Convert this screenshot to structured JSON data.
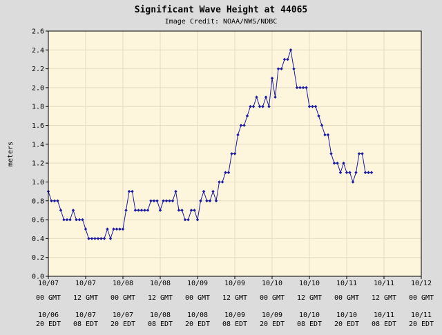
{
  "chart_data": {
    "type": "line",
    "title": "Significant Wave Height at 44065",
    "subtitle": "Image Credit: NOAA/NWS/NDBC",
    "ylabel": "meters",
    "xlabel": "",
    "ylim": [
      0.0,
      2.6
    ],
    "y_ticks": [
      "0.0",
      "0.2",
      "0.4",
      "0.6",
      "0.8",
      "1.0",
      "1.2",
      "1.4",
      "1.6",
      "1.8",
      "2.0",
      "2.2",
      "2.4",
      "2.6"
    ],
    "x_range_hours": [
      0,
      120
    ],
    "x_ticks_gmt": [
      {
        "date": "10/07",
        "time": "00 GMT"
      },
      {
        "date": "10/07",
        "time": "12 GMT"
      },
      {
        "date": "10/08",
        "time": "00 GMT"
      },
      {
        "date": "10/08",
        "time": "12 GMT"
      },
      {
        "date": "10/09",
        "time": "00 GMT"
      },
      {
        "date": "10/09",
        "time": "12 GMT"
      },
      {
        "date": "10/10",
        "time": "00 GMT"
      },
      {
        "date": "10/10",
        "time": "12 GMT"
      },
      {
        "date": "10/11",
        "time": "00 GMT"
      },
      {
        "date": "10/11",
        "time": "12 GMT"
      },
      {
        "date": "10/12",
        "time": "00 GMT"
      }
    ],
    "x_ticks_edt": [
      {
        "date": "10/06",
        "time": "20 EDT"
      },
      {
        "date": "10/07",
        "time": "08 EDT"
      },
      {
        "date": "10/07",
        "time": "20 EDT"
      },
      {
        "date": "10/08",
        "time": "08 EDT"
      },
      {
        "date": "10/08",
        "time": "20 EDT"
      },
      {
        "date": "10/09",
        "time": "08 EDT"
      },
      {
        "date": "10/09",
        "time": "20 EDT"
      },
      {
        "date": "10/10",
        "time": "08 EDT"
      },
      {
        "date": "10/10",
        "time": "20 EDT"
      },
      {
        "date": "10/11",
        "time": "08 EDT"
      },
      {
        "date": "10/11",
        "time": "20 EDT"
      }
    ],
    "grid": true,
    "colors": {
      "background": "#dcdcdc",
      "plot_area": "#fdf5dc",
      "grid": "#e6dcc2",
      "series": "#1a1aa0"
    },
    "series": [
      {
        "x": [
          0,
          1,
          2,
          3,
          4,
          5,
          6,
          7,
          8,
          9,
          10,
          11,
          12,
          13,
          14,
          15,
          16,
          17,
          18,
          19,
          20,
          21,
          22,
          23,
          24,
          25,
          26,
          27,
          28,
          29,
          30,
          31,
          32,
          33,
          34,
          35,
          36,
          37,
          38,
          39,
          40,
          41,
          42,
          43,
          44,
          45,
          46,
          47,
          48,
          49,
          50,
          51,
          52,
          53,
          54,
          55,
          56,
          57,
          58,
          59,
          60,
          61,
          62,
          63,
          64,
          65,
          66,
          67,
          68,
          69,
          70,
          71,
          72,
          73,
          74,
          75,
          76,
          77,
          78,
          79,
          80,
          81,
          82,
          83,
          84,
          85,
          86,
          87,
          88,
          89,
          90,
          91,
          92,
          93,
          94,
          95,
          96,
          97,
          98,
          99,
          100,
          101,
          102,
          103,
          104
        ],
        "values": [
          0.9,
          0.8,
          0.8,
          0.8,
          0.7,
          0.6,
          0.6,
          0.6,
          0.7,
          0.6,
          0.6,
          0.6,
          0.5,
          0.4,
          0.4,
          0.4,
          0.4,
          0.4,
          0.4,
          0.5,
          0.4,
          0.5,
          0.5,
          0.5,
          0.5,
          0.7,
          0.9,
          0.9,
          0.7,
          0.7,
          0.7,
          0.7,
          0.7,
          0.8,
          0.8,
          0.8,
          0.7,
          0.8,
          0.8,
          0.8,
          0.8,
          0.9,
          0.7,
          0.7,
          0.6,
          0.6,
          0.7,
          0.7,
          0.6,
          0.8,
          0.9,
          0.8,
          0.8,
          0.9,
          0.8,
          1.0,
          1.0,
          1.1,
          1.1,
          1.3,
          1.3,
          1.5,
          1.6,
          1.6,
          1.7,
          1.8,
          1.8,
          1.9,
          1.8,
          1.8,
          1.9,
          1.8,
          2.1,
          1.9,
          2.2,
          2.2,
          2.3,
          2.3,
          2.4,
          2.2,
          2.0,
          2.0,
          2.0,
          2.0,
          1.8,
          1.8,
          1.8,
          1.7,
          1.6,
          1.5,
          1.5,
          1.3,
          1.2,
          1.2,
          1.1,
          1.2,
          1.1,
          1.1,
          1.0,
          1.1,
          1.3,
          1.3,
          1.1,
          1.1,
          1.1
        ]
      }
    ]
  }
}
